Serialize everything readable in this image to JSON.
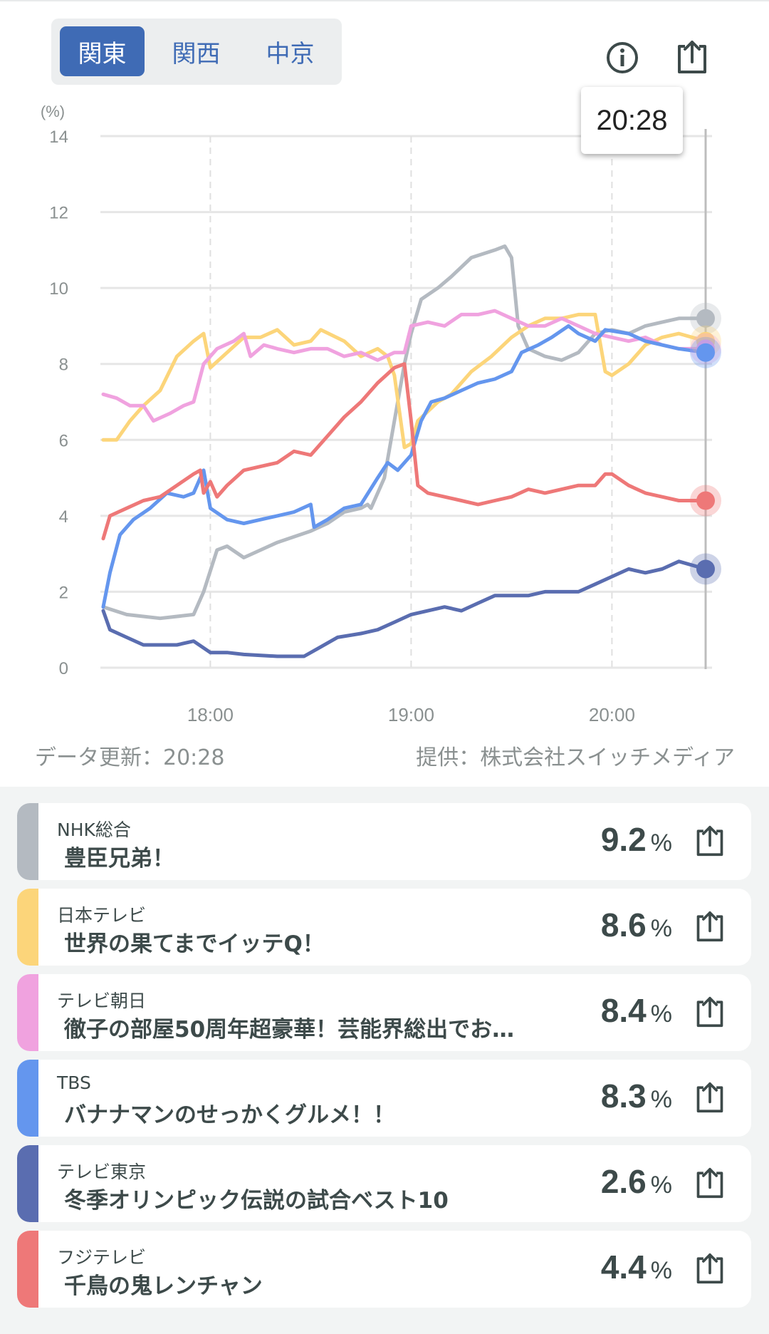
{
  "regions": {
    "tabs": [
      "関東",
      "関西",
      "中京"
    ],
    "selected": "関東"
  },
  "icons": {
    "info": "info-icon",
    "share": "share-icon"
  },
  "tooltip": "20:28",
  "footer": {
    "updated": "データ更新：20:28",
    "provider": "提供：株式会社スイッチメディア"
  },
  "chart_data": {
    "type": "line",
    "ylabel": "(%)",
    "ylim": [
      0,
      14
    ],
    "yticks": [
      "0",
      "2",
      "4",
      "6",
      "8",
      "10",
      "12",
      "14"
    ],
    "xlim": [
      "17:28",
      "20:28"
    ],
    "xticks": [
      "18:00",
      "19:00",
      "20:00"
    ],
    "grid": true,
    "series": [
      {
        "name": "NHK総合",
        "color": "#b4bac1",
        "points": [
          [
            "17:28",
            1.6
          ],
          [
            "17:35",
            1.4
          ],
          [
            "17:45",
            1.3
          ],
          [
            "17:55",
            1.4
          ],
          [
            "17:58",
            2.0
          ],
          [
            "18:02",
            3.1
          ],
          [
            "18:05",
            3.2
          ],
          [
            "18:10",
            2.9
          ],
          [
            "18:20",
            3.3
          ],
          [
            "18:30",
            3.6
          ],
          [
            "18:35",
            3.8
          ],
          [
            "18:40",
            4.1
          ],
          [
            "18:45",
            4.2
          ],
          [
            "18:47",
            4.3
          ],
          [
            "18:48",
            4.2
          ],
          [
            "18:52",
            5.0
          ],
          [
            "18:55",
            6.5
          ],
          [
            "18:58",
            8.0
          ],
          [
            "19:00",
            8.8
          ],
          [
            "19:03",
            9.7
          ],
          [
            "19:08",
            10.0
          ],
          [
            "19:12",
            10.3
          ],
          [
            "19:18",
            10.8
          ],
          [
            "19:25",
            11.0
          ],
          [
            "19:28",
            11.1
          ],
          [
            "19:30",
            10.8
          ],
          [
            "19:32",
            9.0
          ],
          [
            "19:35",
            8.4
          ],
          [
            "19:40",
            8.2
          ],
          [
            "19:45",
            8.1
          ],
          [
            "19:50",
            8.3
          ],
          [
            "19:55",
            8.8
          ],
          [
            "20:00",
            8.9
          ],
          [
            "20:05",
            8.8
          ],
          [
            "20:10",
            9.0
          ],
          [
            "20:15",
            9.1
          ],
          [
            "20:20",
            9.2
          ],
          [
            "20:28",
            9.2
          ]
        ]
      },
      {
        "name": "日本テレビ",
        "color": "#fcd57a",
        "points": [
          [
            "17:28",
            6.0
          ],
          [
            "17:32",
            6.0
          ],
          [
            "17:36",
            6.5
          ],
          [
            "17:40",
            6.9
          ],
          [
            "17:45",
            7.3
          ],
          [
            "17:50",
            8.2
          ],
          [
            "17:55",
            8.6
          ],
          [
            "17:58",
            8.8
          ],
          [
            "18:00",
            7.9
          ],
          [
            "18:05",
            8.3
          ],
          [
            "18:10",
            8.7
          ],
          [
            "18:15",
            8.7
          ],
          [
            "18:20",
            8.9
          ],
          [
            "18:25",
            8.5
          ],
          [
            "18:30",
            8.6
          ],
          [
            "18:33",
            8.9
          ],
          [
            "18:40",
            8.6
          ],
          [
            "18:45",
            8.2
          ],
          [
            "18:50",
            8.4
          ],
          [
            "18:53",
            8.2
          ],
          [
            "18:55",
            7.7
          ],
          [
            "18:58",
            5.8
          ],
          [
            "19:00",
            5.9
          ],
          [
            "19:02",
            6.5
          ],
          [
            "19:08",
            7.0
          ],
          [
            "19:12",
            7.2
          ],
          [
            "19:18",
            7.8
          ],
          [
            "19:24",
            8.2
          ],
          [
            "19:30",
            8.7
          ],
          [
            "19:35",
            9.0
          ],
          [
            "19:40",
            9.2
          ],
          [
            "19:45",
            9.2
          ],
          [
            "19:50",
            9.3
          ],
          [
            "19:55",
            9.3
          ],
          [
            "19:58",
            7.8
          ],
          [
            "20:00",
            7.7
          ],
          [
            "20:05",
            8.0
          ],
          [
            "20:10",
            8.5
          ],
          [
            "20:15",
            8.7
          ],
          [
            "20:20",
            8.8
          ],
          [
            "20:28",
            8.6
          ]
        ]
      },
      {
        "name": "テレビ朝日",
        "color": "#f0a2df",
        "points": [
          [
            "17:28",
            7.2
          ],
          [
            "17:32",
            7.1
          ],
          [
            "17:36",
            6.9
          ],
          [
            "17:40",
            6.9
          ],
          [
            "17:43",
            6.5
          ],
          [
            "17:48",
            6.7
          ],
          [
            "17:52",
            6.9
          ],
          [
            "17:55",
            7.0
          ],
          [
            "17:58",
            8.0
          ],
          [
            "18:02",
            8.4
          ],
          [
            "18:07",
            8.6
          ],
          [
            "18:10",
            8.8
          ],
          [
            "18:12",
            8.2
          ],
          [
            "18:16",
            8.5
          ],
          [
            "18:20",
            8.4
          ],
          [
            "18:25",
            8.3
          ],
          [
            "18:30",
            8.4
          ],
          [
            "18:35",
            8.4
          ],
          [
            "18:40",
            8.2
          ],
          [
            "18:45",
            8.3
          ],
          [
            "18:50",
            8.1
          ],
          [
            "18:55",
            8.3
          ],
          [
            "18:58",
            8.3
          ],
          [
            "19:00",
            9.0
          ],
          [
            "19:05",
            9.1
          ],
          [
            "19:10",
            9.0
          ],
          [
            "19:15",
            9.3
          ],
          [
            "19:20",
            9.3
          ],
          [
            "19:25",
            9.4
          ],
          [
            "19:30",
            9.2
          ],
          [
            "19:35",
            9.0
          ],
          [
            "19:40",
            9.0
          ],
          [
            "19:45",
            9.2
          ],
          [
            "19:50",
            9.0
          ],
          [
            "19:55",
            8.8
          ],
          [
            "20:00",
            8.7
          ],
          [
            "20:05",
            8.6
          ],
          [
            "20:10",
            8.7
          ],
          [
            "20:15",
            8.5
          ],
          [
            "20:20",
            8.4
          ],
          [
            "20:28",
            8.4
          ]
        ]
      },
      {
        "name": "TBS",
        "color": "#6496ee",
        "points": [
          [
            "17:28",
            1.6
          ],
          [
            "17:30",
            2.5
          ],
          [
            "17:33",
            3.5
          ],
          [
            "17:37",
            3.9
          ],
          [
            "17:42",
            4.2
          ],
          [
            "17:47",
            4.6
          ],
          [
            "17:52",
            4.5
          ],
          [
            "17:55",
            4.6
          ],
          [
            "17:58",
            5.2
          ],
          [
            "18:00",
            4.2
          ],
          [
            "18:05",
            3.9
          ],
          [
            "18:10",
            3.8
          ],
          [
            "18:15",
            3.9
          ],
          [
            "18:20",
            4.0
          ],
          [
            "18:25",
            4.1
          ],
          [
            "18:30",
            4.3
          ],
          [
            "18:31",
            3.7
          ],
          [
            "18:35",
            3.9
          ],
          [
            "18:40",
            4.2
          ],
          [
            "18:45",
            4.3
          ],
          [
            "18:50",
            5.0
          ],
          [
            "18:53",
            5.4
          ],
          [
            "18:56",
            5.2
          ],
          [
            "19:00",
            5.6
          ],
          [
            "19:03",
            6.5
          ],
          [
            "19:06",
            7.0
          ],
          [
            "19:10",
            7.1
          ],
          [
            "19:15",
            7.3
          ],
          [
            "19:20",
            7.5
          ],
          [
            "19:25",
            7.6
          ],
          [
            "19:30",
            7.8
          ],
          [
            "19:33",
            8.3
          ],
          [
            "19:38",
            8.5
          ],
          [
            "19:42",
            8.7
          ],
          [
            "19:47",
            9.0
          ],
          [
            "19:50",
            8.8
          ],
          [
            "19:55",
            8.6
          ],
          [
            "19:58",
            8.9
          ],
          [
            "20:05",
            8.8
          ],
          [
            "20:10",
            8.6
          ],
          [
            "20:15",
            8.5
          ],
          [
            "20:20",
            8.4
          ],
          [
            "20:28",
            8.3
          ]
        ]
      },
      {
        "name": "テレビ東京",
        "color": "#5a6db0",
        "points": [
          [
            "17:28",
            1.5
          ],
          [
            "17:30",
            1.0
          ],
          [
            "17:35",
            0.8
          ],
          [
            "17:40",
            0.6
          ],
          [
            "17:45",
            0.6
          ],
          [
            "17:50",
            0.6
          ],
          [
            "17:55",
            0.7
          ],
          [
            "18:00",
            0.4
          ],
          [
            "18:05",
            0.4
          ],
          [
            "18:10",
            0.35
          ],
          [
            "18:20",
            0.3
          ],
          [
            "18:28",
            0.3
          ],
          [
            "18:32",
            0.5
          ],
          [
            "18:38",
            0.8
          ],
          [
            "18:45",
            0.9
          ],
          [
            "18:50",
            1.0
          ],
          [
            "18:55",
            1.2
          ],
          [
            "19:00",
            1.4
          ],
          [
            "19:05",
            1.5
          ],
          [
            "19:10",
            1.6
          ],
          [
            "19:15",
            1.5
          ],
          [
            "19:20",
            1.7
          ],
          [
            "19:25",
            1.9
          ],
          [
            "19:30",
            1.9
          ],
          [
            "19:35",
            1.9
          ],
          [
            "19:40",
            2.0
          ],
          [
            "19:45",
            2.0
          ],
          [
            "19:50",
            2.0
          ],
          [
            "19:55",
            2.2
          ],
          [
            "20:00",
            2.4
          ],
          [
            "20:05",
            2.6
          ],
          [
            "20:10",
            2.5
          ],
          [
            "20:15",
            2.6
          ],
          [
            "20:20",
            2.8
          ],
          [
            "20:28",
            2.6
          ]
        ]
      },
      {
        "name": "フジテレビ",
        "color": "#ee7878",
        "points": [
          [
            "17:28",
            3.4
          ],
          [
            "17:30",
            4.0
          ],
          [
            "17:35",
            4.2
          ],
          [
            "17:40",
            4.4
          ],
          [
            "17:45",
            4.5
          ],
          [
            "17:50",
            4.8
          ],
          [
            "17:55",
            5.1
          ],
          [
            "17:57",
            5.2
          ],
          [
            "17:58",
            4.6
          ],
          [
            "18:00",
            4.9
          ],
          [
            "18:02",
            4.5
          ],
          [
            "18:05",
            4.8
          ],
          [
            "18:10",
            5.2
          ],
          [
            "18:15",
            5.3
          ],
          [
            "18:20",
            5.4
          ],
          [
            "18:25",
            5.7
          ],
          [
            "18:30",
            5.6
          ],
          [
            "18:35",
            6.1
          ],
          [
            "18:40",
            6.6
          ],
          [
            "18:45",
            7.0
          ],
          [
            "18:50",
            7.5
          ],
          [
            "18:55",
            7.9
          ],
          [
            "18:58",
            8.0
          ],
          [
            "19:00",
            6.5
          ],
          [
            "19:02",
            4.8
          ],
          [
            "19:05",
            4.6
          ],
          [
            "19:10",
            4.5
          ],
          [
            "19:15",
            4.4
          ],
          [
            "19:20",
            4.3
          ],
          [
            "19:25",
            4.4
          ],
          [
            "19:30",
            4.5
          ],
          [
            "19:35",
            4.7
          ],
          [
            "19:40",
            4.6
          ],
          [
            "19:45",
            4.7
          ],
          [
            "19:50",
            4.8
          ],
          [
            "19:55",
            4.8
          ],
          [
            "19:58",
            5.1
          ],
          [
            "20:00",
            5.1
          ],
          [
            "20:05",
            4.8
          ],
          [
            "20:10",
            4.6
          ],
          [
            "20:15",
            4.5
          ],
          [
            "20:20",
            4.4
          ],
          [
            "20:28",
            4.4
          ]
        ]
      }
    ]
  },
  "programs": [
    {
      "channel": "NHK総合",
      "title": "豊臣兄弟！",
      "value": "9.2",
      "unit": "%",
      "color": "#b4bac1"
    },
    {
      "channel": "日本テレビ",
      "title": "世界の果てまでイッテQ！",
      "value": "8.6",
      "unit": "%",
      "color": "#fcd57a"
    },
    {
      "channel": "テレビ朝日",
      "title": "徹子の部屋50周年超豪華！芸能界総出でお…",
      "value": "8.4",
      "unit": "%",
      "color": "#f0a2df"
    },
    {
      "channel": "TBS",
      "title": "バナナマンのせっかくグルメ！！",
      "value": "8.3",
      "unit": "%",
      "color": "#6496ee"
    },
    {
      "channel": "テレビ東京",
      "title": "冬季オリンピック伝説の試合ベスト10",
      "value": "2.6",
      "unit": "%",
      "color": "#5a6db0"
    },
    {
      "channel": "フジテレビ",
      "title": "千鳥の鬼レンチャン",
      "value": "4.4",
      "unit": "%",
      "color": "#ee7878"
    }
  ]
}
